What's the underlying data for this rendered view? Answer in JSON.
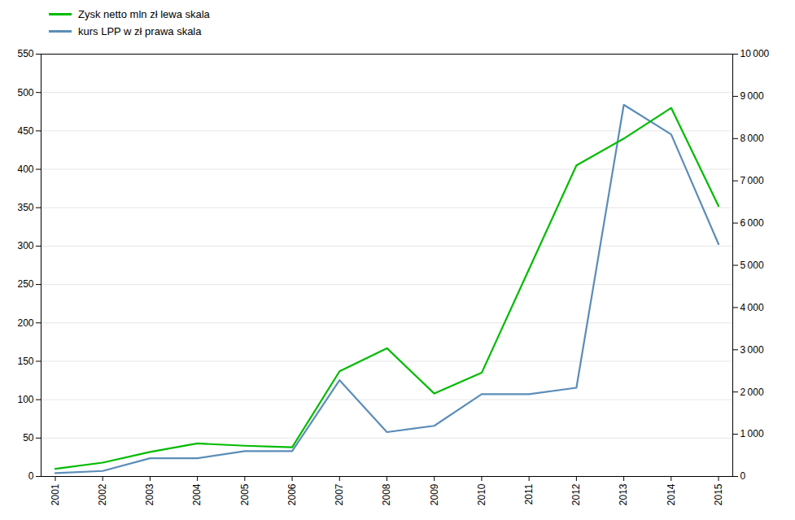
{
  "chart_data": {
    "type": "line",
    "x": [
      2001,
      2002,
      2003,
      2004,
      2005,
      2006,
      2007,
      2008,
      2009,
      2010,
      2011,
      2012,
      2013,
      2014,
      2015
    ],
    "xlim": [
      2000.7,
      2015.3
    ],
    "xticks": [
      2001,
      2002,
      2003,
      2004,
      2005,
      2006,
      2007,
      2008,
      2009,
      2010,
      2011,
      2012,
      2013,
      2014,
      2015
    ],
    "ylim": [
      0,
      550
    ],
    "yticks": [
      0,
      50,
      100,
      150,
      200,
      250,
      300,
      350,
      400,
      450,
      500,
      550
    ],
    "y2lim": [
      0,
      10000
    ],
    "y2ticks": [
      0,
      {
        "value": 1000,
        "label": "1 000"
      },
      {
        "value": 2000,
        "label": "2 000"
      },
      {
        "value": 3000,
        "label": "3 000"
      },
      {
        "value": 4000,
        "label": "4 000"
      },
      {
        "value": 5000,
        "label": "5 000"
      },
      {
        "value": 6000,
        "label": "6 000"
      },
      {
        "value": 7000,
        "label": "7 000"
      },
      {
        "value": 8000,
        "label": "8 000"
      },
      {
        "value": 9000,
        "label": "9 000"
      },
      {
        "value": 10000,
        "label": "10 000"
      }
    ],
    "grid": true,
    "legend": "upper left",
    "series": [
      {
        "name": "Zysk netto mln zł lewa skala",
        "color": "#00bb00",
        "values": [
          10,
          18,
          32,
          43,
          40,
          38,
          137,
          167,
          108,
          135,
          270,
          405,
          440,
          480,
          352
        ]
      },
      {
        "name": "kurs LPP w zł prawa skala",
        "color": "#5b8db8",
        "axis": "y2",
        "values": [
          80,
          130,
          430,
          430,
          600,
          600,
          2280,
          1050,
          1200,
          1950,
          1950,
          2100,
          8800,
          8100,
          5500
        ]
      }
    ]
  }
}
